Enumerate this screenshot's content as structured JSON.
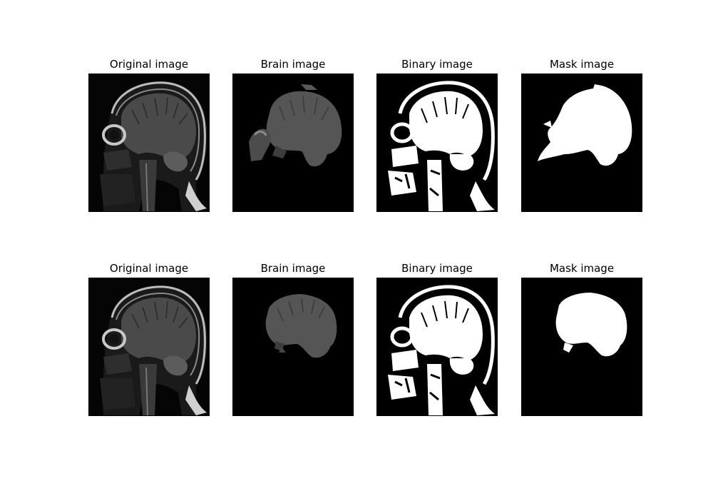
{
  "figure": {
    "rows": [
      {
        "panels": [
          {
            "title": "Original image",
            "kind": "original"
          },
          {
            "title": "Brain image",
            "kind": "brain"
          },
          {
            "title": "Binary image",
            "kind": "binary"
          },
          {
            "title": "Mask image",
            "kind": "mask"
          }
        ]
      },
      {
        "panels": [
          {
            "title": "Original image",
            "kind": "original"
          },
          {
            "title": "Brain image",
            "kind": "brain"
          },
          {
            "title": "Binary image",
            "kind": "binary"
          },
          {
            "title": "Mask image",
            "kind": "mask"
          }
        ]
      }
    ]
  },
  "colors": {
    "background": "#ffffff",
    "image_background": "#000000",
    "tissue_gray": "#5a5a5a",
    "bright": "#ffffff"
  }
}
